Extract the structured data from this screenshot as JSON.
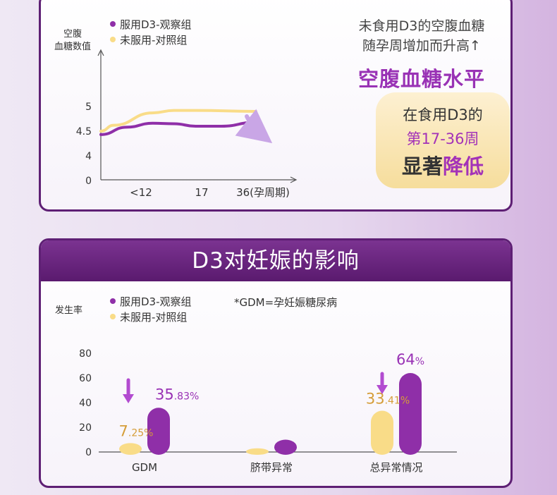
{
  "colors": {
    "d3": "#8f2fa8",
    "control": "#f9dc88",
    "accent": "#9932b5",
    "frame": "#5e1f74"
  },
  "card1": {
    "legend": {
      "d3": "服用D3-观察组",
      "control": "未服用-对照组"
    },
    "ylabel_line1": "空腹",
    "ylabel_line2": "血糖数值",
    "side_line1": "未食用D3的空腹血糖",
    "side_line2": "随孕周增加而升高↑",
    "side_title": "空腹血糖水平",
    "bubble_line1": "在食用D3的",
    "bubble_line2": "第17-36周",
    "bubble_line3a": "显著",
    "bubble_line3b": "降低"
  },
  "card2": {
    "title": "D3对妊娠的影响",
    "legend": {
      "d3": "服用D3-观察组",
      "control": "未服用-对照组"
    },
    "note": "*GDM=孕妊娠糖尿病",
    "ylabel": "发生率"
  },
  "chart_data": [
    {
      "type": "line",
      "x_ticks": [
        "<12",
        "17",
        "36(孕周期)"
      ],
      "y_ticks": [
        "0",
        "4",
        "4.5",
        "5"
      ],
      "series": [
        {
          "name": "未服用-对照组",
          "x": [
            0,
            3,
            12,
            17,
            22,
            36
          ],
          "y": [
            4.5,
            4.62,
            4.87,
            4.92,
            4.92,
            4.9
          ]
        },
        {
          "name": "服用D3-观察组",
          "x": [
            0,
            6,
            12,
            17,
            22,
            28,
            36
          ],
          "y": [
            4.43,
            4.58,
            4.66,
            4.65,
            4.6,
            4.6,
            4.68
          ]
        }
      ]
    },
    {
      "type": "bar",
      "ylim": [
        0,
        80
      ],
      "y_ticks": [
        "0",
        "20",
        "40",
        "60",
        "80"
      ],
      "categories": [
        "GDM",
        "脐带异常",
        "总异常情况"
      ],
      "series": [
        {
          "name": "未服用-对照组",
          "values": [
            7.25,
            3,
            33.41
          ]
        },
        {
          "name": "服用D3-观察组",
          "values": [
            35.83,
            10,
            64
          ]
        }
      ],
      "labels": [
        {
          "series": 0,
          "index": 0,
          "main": "7",
          "suffix": ".25%"
        },
        {
          "series": 1,
          "index": 0,
          "main": "35",
          "suffix": ".83%"
        },
        {
          "series": 0,
          "index": 2,
          "main": "33",
          "suffix": ".41%"
        },
        {
          "series": 1,
          "index": 2,
          "main": "64",
          "suffix": "%"
        }
      ]
    }
  ]
}
